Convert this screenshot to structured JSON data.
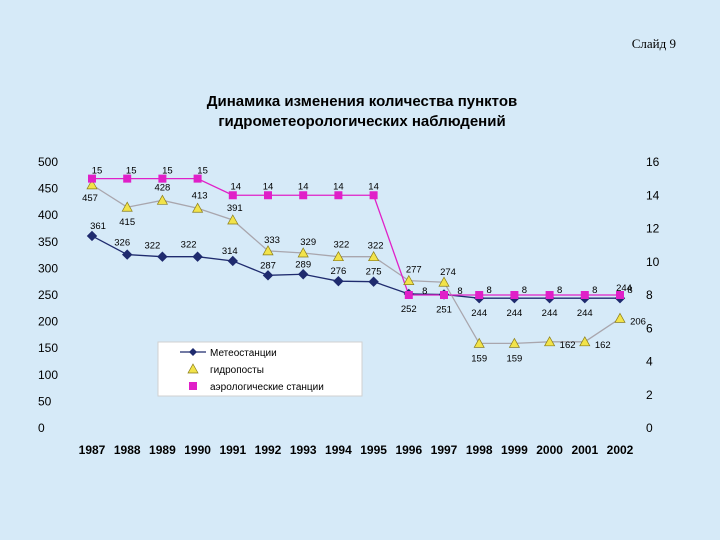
{
  "slide_label": "Слайд 9",
  "chart_data": {
    "type": "line",
    "title_lines": [
      "Динамика изменения количества пунктов",
      "гидрометеорологических наблюдений"
    ],
    "categories": [
      "1987",
      "1988",
      "1989",
      "1990",
      "1991",
      "1992",
      "1993",
      "1994",
      "1995",
      "1996",
      "1997",
      "1998",
      "1999",
      "2000",
      "2001",
      "2002"
    ],
    "ylim": [
      0,
      500
    ],
    "y_ticks": [
      0,
      50,
      100,
      150,
      200,
      250,
      300,
      350,
      400,
      450,
      500
    ],
    "y2lim": [
      0,
      16
    ],
    "y2_ticks": [
      0,
      2,
      4,
      6,
      8,
      10,
      12,
      14,
      16
    ],
    "grid": false,
    "legend_position": "center-left",
    "series": [
      {
        "name": "Метеостанции",
        "axis": "left",
        "marker": "diamond",
        "color": "#1f2b6e",
        "values": [
          361,
          326,
          322,
          322,
          314,
          287,
          289,
          276,
          275,
          252,
          251,
          244,
          244,
          244,
          244,
          244
        ],
        "labels": [
          "361",
          "326",
          "322",
          "322",
          "314",
          "287",
          "289",
          "276",
          "275",
          "252",
          "251",
          "244",
          "244",
          "244",
          "244",
          "244"
        ]
      },
      {
        "name": "гидропосты",
        "axis": "left",
        "marker": "triangle",
        "color": "#f2e34a",
        "line_color": "#a9a6ad",
        "values": [
          457,
          415,
          428,
          413,
          391,
          333,
          329,
          322,
          322,
          277,
          274,
          159,
          159,
          162,
          162,
          206
        ],
        "labels": [
          "457",
          "415",
          "428",
          "413",
          "391",
          "333",
          "329",
          "322",
          "322",
          "277",
          "274",
          "159",
          "159",
          "162",
          "162",
          "206"
        ]
      },
      {
        "name": "аэрологические станции",
        "axis": "right",
        "marker": "square",
        "color": "#e020c8",
        "values": [
          15,
          15,
          15,
          15,
          14,
          14,
          14,
          14,
          14,
          8,
          8,
          8,
          8,
          8,
          8,
          8
        ],
        "labels": [
          "15",
          "15",
          "15",
          "15",
          "14",
          "14",
          "14",
          "14",
          "14",
          "8",
          "8",
          "8",
          "8",
          "8",
          "8",
          "8"
        ]
      }
    ]
  }
}
